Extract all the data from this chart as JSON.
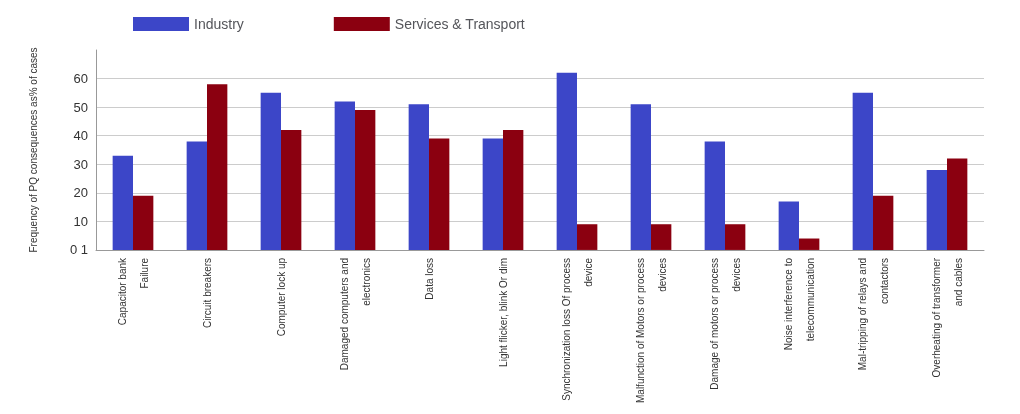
{
  "chart_data": {
    "type": "bar",
    "ylabel": "Frequency of PQ consequences as% of cases",
    "categories": [
      "Capacitor bank\nFailure",
      "Circuit breakers",
      "Computer lock up",
      "Damaged computers and\nelectronics",
      "Data loss",
      "Light flicker, blink Or dim",
      "Synchronization loss Of process\ndevice",
      "Malfunction of Motors or process\ndevices",
      "Damage of motors or process\ndevices",
      "Noise interference to\ntelecommunication",
      "Mal-tripping of relays and\ncontactors",
      "Overheating of transformer\nand cables"
    ],
    "series": [
      {
        "name": "Industry",
        "color": "#3c46c8",
        "values": [
          33,
          38,
          55,
          52,
          51,
          39,
          62,
          51,
          38,
          17,
          55,
          28
        ]
      },
      {
        "name": "Services & Transport",
        "color": "#8b0010",
        "values": [
          19,
          58,
          42,
          49,
          39,
          42,
          9,
          9,
          9,
          4,
          19,
          32
        ]
      }
    ],
    "ylim": [
      0,
      70
    ],
    "yticks": [
      {
        "value": 0,
        "label": "0 1"
      },
      10,
      20,
      30,
      40,
      50,
      60
    ],
    "grid": "y",
    "legend": "top left"
  }
}
